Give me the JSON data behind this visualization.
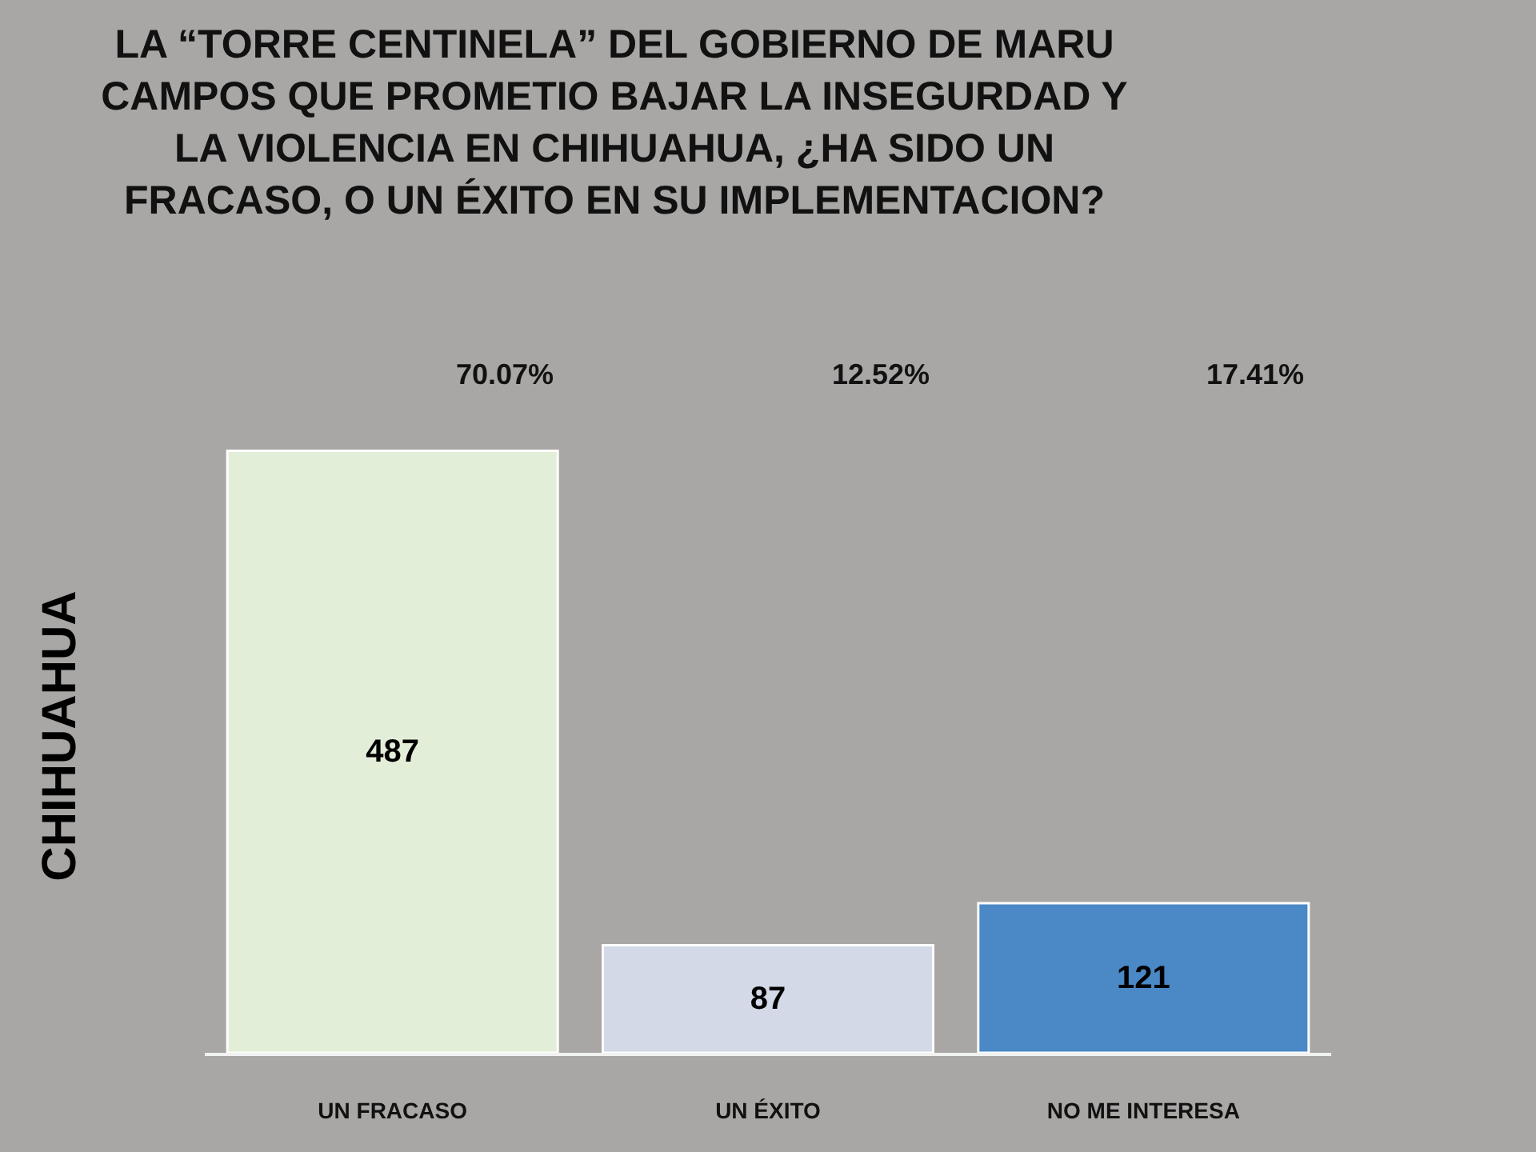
{
  "chart_data": {
    "type": "bar",
    "title": "LA “TORRE CENTINELA” DEL GOBIERNO DE MARU CAMPOS QUE PROMETIO BAJAR LA INSEGURDAD Y LA VIOLENCIA EN CHIHUAHUA, ¿HA SIDO UN FRACASO, O UN ÉXITO EN SU IMPLEMENTACION?",
    "ylabel": "CHIHUAHUA",
    "categories": [
      "UN FRACASO",
      "UN ÉXITO",
      "NO ME INTERESA"
    ],
    "values": [
      487,
      87,
      121
    ],
    "colors": [
      "#e3eed8",
      "#d3d9e6",
      "#4a88c6"
    ],
    "data_labels": true,
    "annotations": [
      "70.07%",
      "12.52%",
      "17.41%"
    ]
  }
}
